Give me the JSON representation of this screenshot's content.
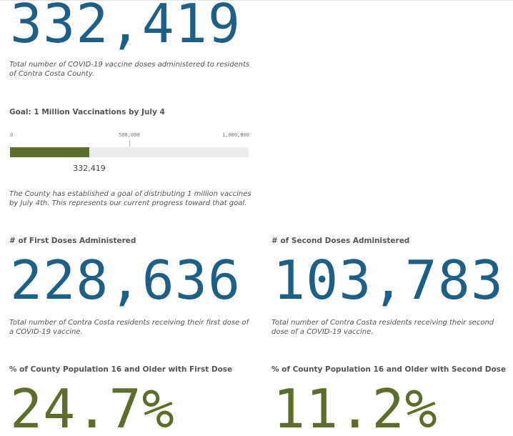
{
  "total": {
    "value": "332,419",
    "caption": "Total number of COVID-19 vaccine doses administered to residents of Contra Costa County."
  },
  "goal": {
    "title": "Goal: 1 Million Vaccinations by July 4",
    "axis_labels": [
      "0",
      "500,000",
      "1,000,000"
    ],
    "value_label": "332,419",
    "progress_fraction": 0.332419,
    "caption": "The County has established a goal of distributing 1 million vaccines by July 4th. This represents our current progress toward that goal."
  },
  "first_doses": {
    "title": "# of First Doses Administered",
    "value": "228,636",
    "caption": "Total number of Contra Costa residents receiving their first dose of a COVID-19 vaccine."
  },
  "second_doses": {
    "title": "# of Second Doses Administered",
    "value": "103,783",
    "caption": "Total number of Contra Costa residents receiving their second dose of a COVID-19 vaccine."
  },
  "pct_first": {
    "title": "% of County Population 16 and Older with First Dose",
    "value": "24.7%"
  },
  "pct_second": {
    "title": "% of County Population 16 and Older with Second Dose",
    "value": "11.2%"
  },
  "colors": {
    "number_blue": "#1e5f86",
    "number_green": "#5c6d2c",
    "bar_fill": "#5c6d2c",
    "bar_track": "#ededed"
  }
}
